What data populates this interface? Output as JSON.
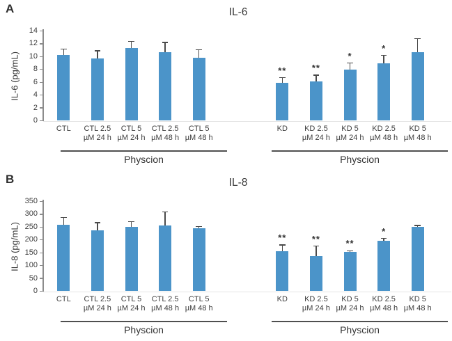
{
  "figure_title": "IL-6 and IL-8 bar chart figure",
  "colors": {
    "bar": "#4b94c9",
    "error_bar": "#4a4a4a",
    "axis": "#8c8c8c",
    "baseline": "#e3e3e3",
    "underline": "#4f4f4f",
    "text": "#3c3c3c"
  },
  "chart_data": [
    {
      "type": "bar",
      "panel": "A",
      "title": "IL-6",
      "ylabel": "IL-6 (pg/mL)",
      "xlabel": "",
      "ylim": [
        0,
        14
      ],
      "yticks": [
        0,
        2,
        4,
        6,
        8,
        10,
        12,
        14
      ],
      "grid": false,
      "legend": null,
      "groups": [
        {
          "name": "CTL group",
          "group_label": "Physcion",
          "categories": [
            "CTL",
            "CTL 2.5 µM 24 h",
            "CTL 5 µM 24 h",
            "CTL 2.5 µM 48 h",
            "CTL 5 µM 48 h"
          ],
          "category_lines": [
            [
              "CTL"
            ],
            [
              "CTL 2.5",
              "µM 24 h"
            ],
            [
              "CTL 5",
              "µM 24 h"
            ],
            [
              "CTL 2.5",
              "µM 48 h"
            ],
            [
              "CTL 5",
              "µM 48 h"
            ]
          ],
          "values": [
            10.3,
            9.7,
            11.3,
            10.7,
            9.8
          ],
          "errors": [
            0.9,
            1.2,
            1.1,
            1.5,
            1.3
          ],
          "significance": [
            "",
            "",
            "",
            "",
            ""
          ]
        },
        {
          "name": "KD group",
          "group_label": "Physcion",
          "categories": [
            "KD",
            "KD 2.5 µM 24 h",
            "KD 5 µM 24 h",
            "KD 2.5 µM 48 h",
            "KD 5 µM 48 h"
          ],
          "category_lines": [
            [
              "KD"
            ],
            [
              "KD 2.5",
              "µM 24 h"
            ],
            [
              "KD 5",
              "µM 24 h"
            ],
            [
              "KD 2.5",
              "µM 48 h"
            ],
            [
              "KD 5",
              "µM 48 h"
            ]
          ],
          "values": [
            5.9,
            6.1,
            8.0,
            9.0,
            10.7
          ],
          "errors": [
            0.8,
            1.0,
            1.0,
            1.2,
            2.1
          ],
          "significance": [
            "**",
            "**",
            "*",
            "*",
            ""
          ]
        }
      ]
    },
    {
      "type": "bar",
      "panel": "B",
      "title": "IL-8",
      "ylabel": "IL-8 (pg/mL)",
      "xlabel": "",
      "ylim": [
        0,
        350
      ],
      "yticks": [
        0,
        50,
        100,
        150,
        200,
        250,
        300,
        350
      ],
      "grid": false,
      "legend": null,
      "groups": [
        {
          "name": "CTL group",
          "group_label": "Physcion",
          "categories": [
            "CTL",
            "CTL 2.5 µM 24 h",
            "CTL 5 µM 24 h",
            "CTL 2.5 µM 48 h",
            "CTL 5 µM 48 h"
          ],
          "category_lines": [
            [
              "CTL"
            ],
            [
              "CTL 2.5",
              "µM 24 h"
            ],
            [
              "CTL 5",
              "µM 24 h"
            ],
            [
              "CTL 2.5",
              "µM 48 h"
            ],
            [
              "CTL 5",
              "µM 48 h"
            ]
          ],
          "values": [
            258,
            237,
            250,
            257,
            246
          ],
          "errors": [
            30,
            30,
            21,
            52,
            7
          ],
          "significance": [
            "",
            "",
            "",
            "",
            ""
          ]
        },
        {
          "name": "KD group",
          "group_label": "Physcion",
          "categories": [
            "KD",
            "KD 2.5 µM 24 h",
            "KD 5 µM 24 h",
            "KD 2.5 µM 48 h",
            "KD 5 µM 48 h"
          ],
          "category_lines": [
            [
              "KD"
            ],
            [
              "KD 2.5",
              "µM 24 h"
            ],
            [
              "KD 5",
              "µM 24 h"
            ],
            [
              "KD 2.5",
              "µM 48 h"
            ],
            [
              "KD 5",
              "µM 48 h"
            ]
          ],
          "values": [
            155,
            138,
            153,
            196,
            251
          ],
          "errors": [
            25,
            38,
            5,
            10,
            5
          ],
          "significance": [
            "**",
            "**",
            "**",
            "*",
            ""
          ]
        }
      ]
    }
  ]
}
